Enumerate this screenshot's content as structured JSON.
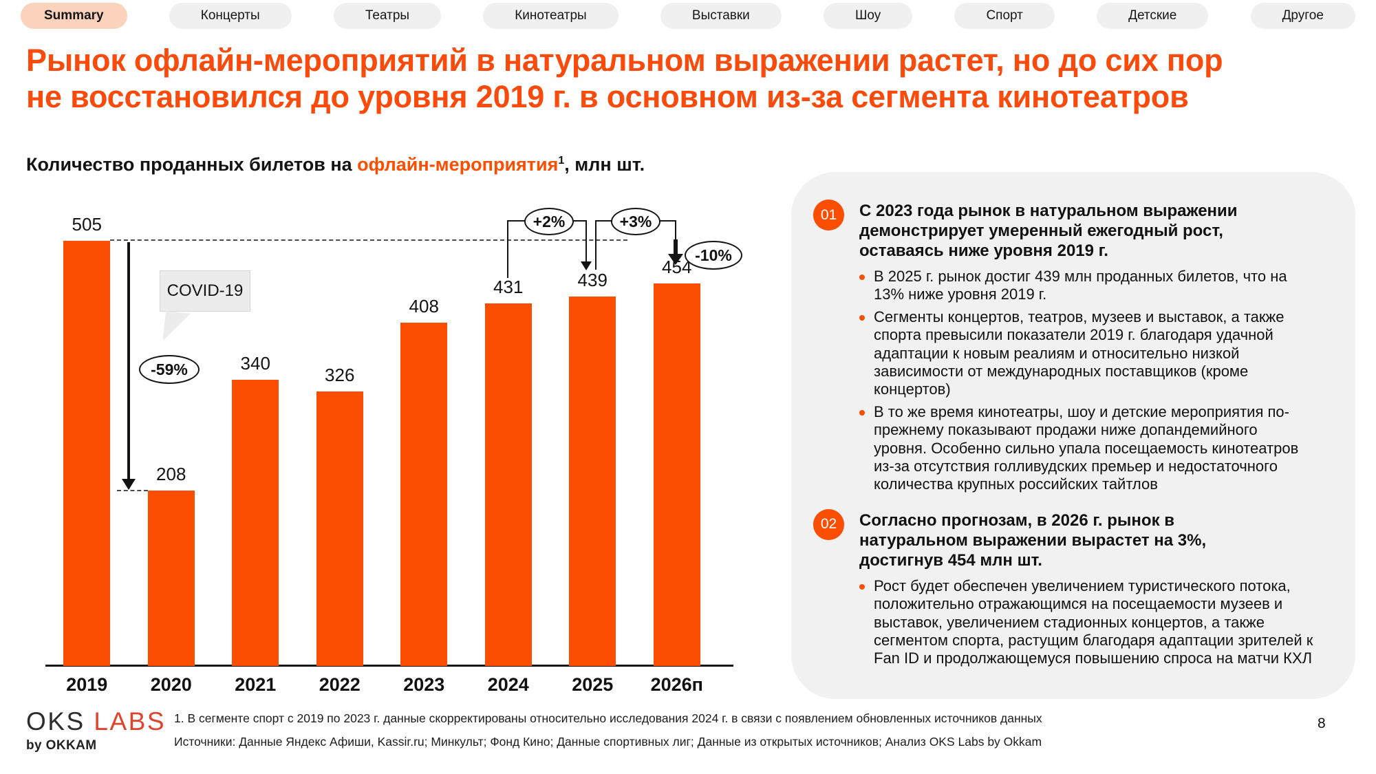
{
  "tabs": [
    {
      "id": "summary",
      "label": "Summary",
      "active": true
    },
    {
      "id": "concerts",
      "label": "Концерты",
      "active": false
    },
    {
      "id": "theaters",
      "label": "Театры",
      "active": false
    },
    {
      "id": "cinemas",
      "label": "Кинотеатры",
      "active": false
    },
    {
      "id": "exhibitions",
      "label": "Выставки",
      "active": false
    },
    {
      "id": "shows",
      "label": "Шоу",
      "active": false
    },
    {
      "id": "sport",
      "label": "Спорт",
      "active": false
    },
    {
      "id": "kids",
      "label": "Детские",
      "active": false
    },
    {
      "id": "other",
      "label": "Другое",
      "active": false
    }
  ],
  "title": "Рынок офлайн-мероприятий в натуральном выражении растет, но до сих пор\nне восстановился до уровня 2019 г. в основном из-за сегмента кинотеатров",
  "chart_heading": {
    "prefix": "Количество проданных билетов на ",
    "highlight": "офлайн-мероприятия",
    "superscript": "1",
    "suffix": ", млн шт."
  },
  "chart_data": {
    "type": "bar",
    "title": "Количество проданных билетов на офлайн-мероприятия, млн шт.",
    "unit": "млн шт.",
    "categories": [
      "2019",
      "2020",
      "2021",
      "2022",
      "2023",
      "2024",
      "2025",
      "2026п"
    ],
    "values": [
      505,
      208,
      340,
      326,
      408,
      431,
      439,
      454
    ],
    "ylim": [
      0,
      560
    ],
    "grid": false,
    "legend": false,
    "reference_line": {
      "value": 505,
      "style": "dashed",
      "from_category": "2019"
    },
    "annotations": [
      {
        "id": "covid",
        "label": "COVID-19",
        "type": "callout",
        "at": "2020"
      },
      {
        "id": "drop-2020",
        "label": "-59%",
        "type": "oval",
        "from": "2019",
        "to": "2020"
      },
      {
        "id": "growth-2025",
        "label": "+2%",
        "type": "oval-bracket",
        "from": "2024",
        "to": "2025"
      },
      {
        "id": "growth-2026",
        "label": "+3%",
        "type": "oval-bracket",
        "from": "2025",
        "to": "2026п"
      },
      {
        "id": "vs-2019",
        "label": "-10%",
        "type": "oval",
        "from": "2019",
        "to": "2026п"
      }
    ]
  },
  "insights": [
    {
      "number": "01",
      "heading": "С 2023 года рынок в натуральном выражении демонстрирует умеренный ежегодный рост, оставаясь ниже уровня 2019 г.",
      "bullets": [
        "В 2025 г. рынок достиг 439 млн проданных билетов, что на 13% ниже уровня 2019 г.",
        "Сегменты концертов, театров, музеев и выставок, а также спорта превысили показатели 2019 г. благодаря удачной адаптации к новым реалиям и относительно низкой зависимости от международных поставщиков (кроме концертов)",
        "В то же время кинотеатры, шоу и детские мероприятия по-прежнему показывают продажи ниже допандемийного уровня. Особенно сильно упала посещаемость кинотеатров из-за отсутствия голливудских премьер и недостаточного количества крупных российских тайтлов"
      ]
    },
    {
      "number": "02",
      "heading": "Согласно прогнозам, в 2026 г. рынок в натуральном выражении вырастет на 3%, достигнув 454 млн шт.",
      "bullets": [
        "Рост будет обеспечен увеличением туристического потока, положительно отражающимся на посещаемости музеев и выставок, увеличением стадионных концертов, а также сегментом спорта, растущим благодаря адаптации зрителей к Fan ID и продолжающемуся повышению спроса на матчи КХЛ"
      ]
    }
  ],
  "footer": {
    "logo_primary": "OKS",
    "logo_secondary": "LABS",
    "logo_sub": "by OKKAM",
    "footnote": "1. В сегменте спорт с 2019 по 2023 г. данные скорректированы относительно исследования 2024 г. в связи с появлением обновленных источников данных",
    "sources": "Источники: Данные Яндекс Афиши, Kassir.ru; Минкульт; Фонд Кино; Данные спортивных лиг; Данные из открытых источников; Анализ OKS Labs by Okkam",
    "page_number": "8"
  },
  "colors": {
    "accent": "#FB4E00",
    "title": "#FA4B0C",
    "tabActive": "#FBD3BD",
    "tabBg": "#F0F0F0",
    "panel": "#F1F1F1",
    "logoRed": "#E0422D",
    "ink": "#111111"
  }
}
